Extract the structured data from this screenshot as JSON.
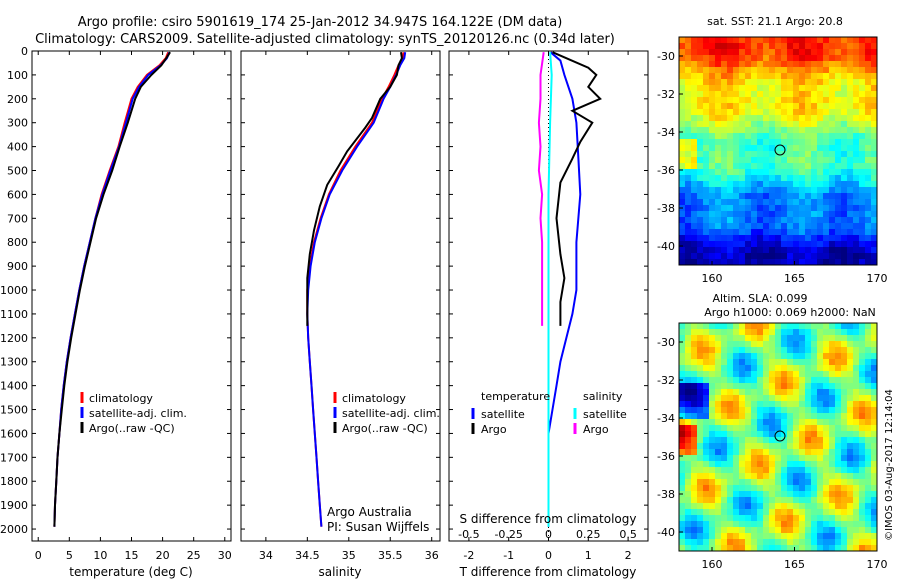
{
  "header": {
    "title_line1": "Argo profile: csiro 5901619_174 25-Jan-2012 34.947S 164.122E (DM data)",
    "title_line2": "Climatology: CARS2009. Satellite-adjusted climatology: synTS_20120126.nc (0.34d later)"
  },
  "chart_data": [
    {
      "type": "line",
      "panel": "temperature",
      "xlabel": "temperature (deg C)",
      "ylabel": "",
      "xlim": [
        -1,
        31
      ],
      "ylim": [
        2050,
        0
      ],
      "xticks": [
        0,
        5,
        10,
        15,
        20,
        25,
        30
      ],
      "yticks": [
        0,
        100,
        200,
        300,
        400,
        500,
        600,
        700,
        800,
        900,
        1000,
        1100,
        1200,
        1300,
        1400,
        1500,
        1600,
        1700,
        1800,
        1900,
        2000
      ],
      "legend": [
        "climatology",
        "satellite-adj. clim.",
        "Argo(..raw -QC)"
      ],
      "series": [
        {
          "name": "climatology",
          "color": "#ff0000",
          "points": [
            [
              20.9,
              5
            ],
            [
              20.5,
              30
            ],
            [
              19.5,
              60
            ],
            [
              17.5,
              100
            ],
            [
              16.0,
              150
            ],
            [
              15.0,
              200
            ],
            [
              13.9,
              300
            ],
            [
              12.9,
              400
            ],
            [
              11.5,
              500
            ],
            [
              10.2,
              600
            ],
            [
              9.2,
              700
            ],
            [
              8.3,
              800
            ],
            [
              7.4,
              900
            ],
            [
              6.6,
              1000
            ],
            [
              5.9,
              1100
            ],
            [
              5.2,
              1200
            ],
            [
              4.6,
              1300
            ],
            [
              4.1,
              1400
            ],
            [
              3.7,
              1500
            ],
            [
              3.4,
              1600
            ],
            [
              3.1,
              1700
            ],
            [
              2.9,
              1800
            ],
            [
              2.7,
              1900
            ],
            [
              2.6,
              1990
            ]
          ]
        },
        {
          "name": "satellite-adj. clim.",
          "color": "#0000ff",
          "points": [
            [
              21.1,
              5
            ],
            [
              20.7,
              30
            ],
            [
              19.7,
              60
            ],
            [
              17.7,
              100
            ],
            [
              16.2,
              150
            ],
            [
              15.2,
              200
            ],
            [
              14.1,
              300
            ],
            [
              13.0,
              400
            ],
            [
              11.6,
              500
            ],
            [
              10.3,
              600
            ],
            [
              9.2,
              700
            ],
            [
              8.3,
              800
            ],
            [
              7.4,
              900
            ],
            [
              6.6,
              1000
            ],
            [
              5.9,
              1100
            ],
            [
              5.2,
              1200
            ],
            [
              4.6,
              1300
            ],
            [
              4.1,
              1400
            ],
            [
              3.7,
              1500
            ],
            [
              3.4,
              1600
            ],
            [
              3.1,
              1700
            ],
            [
              2.9,
              1800
            ],
            [
              2.7,
              1900
            ],
            [
              2.6,
              1990
            ]
          ]
        },
        {
          "name": "Argo(..raw -QC)",
          "color": "#000000",
          "points": [
            [
              21.2,
              5
            ],
            [
              20.6,
              30
            ],
            [
              19.8,
              60
            ],
            [
              18.2,
              100
            ],
            [
              16.5,
              150
            ],
            [
              15.6,
              200
            ],
            [
              14.4,
              300
            ],
            [
              13.1,
              400
            ],
            [
              11.9,
              500
            ],
            [
              10.5,
              600
            ],
            [
              9.3,
              700
            ],
            [
              8.4,
              800
            ],
            [
              7.5,
              900
            ],
            [
              6.7,
              1000
            ],
            [
              6.0,
              1100
            ],
            [
              5.3,
              1200
            ],
            [
              4.7,
              1300
            ],
            [
              4.2,
              1400
            ],
            [
              3.8,
              1500
            ],
            [
              3.4,
              1600
            ],
            [
              3.1,
              1700
            ],
            [
              2.9,
              1800
            ],
            [
              2.7,
              1900
            ],
            [
              2.6,
              1990
            ]
          ]
        }
      ]
    },
    {
      "type": "line",
      "panel": "salinity",
      "xlabel": "salinity",
      "ylabel": "",
      "xlim": [
        33.7,
        36.1
      ],
      "ylim": [
        2050,
        0
      ],
      "xticks": [
        34,
        34.5,
        35,
        35.5,
        36
      ],
      "legend": [
        "climatology",
        "satellite-adj. clim.",
        "Argo(..raw -QC)"
      ],
      "annotation": [
        "Argo Australia",
        "PI: Susan Wijffels"
      ],
      "series": [
        {
          "name": "climatology",
          "color": "#ff0000",
          "points": [
            [
              35.66,
              5
            ],
            [
              35.65,
              30
            ],
            [
              35.6,
              60
            ],
            [
              35.55,
              100
            ],
            [
              35.48,
              150
            ],
            [
              35.4,
              200
            ],
            [
              35.28,
              300
            ],
            [
              35.08,
              400
            ],
            [
              34.9,
              500
            ],
            [
              34.76,
              600
            ],
            [
              34.66,
              700
            ],
            [
              34.58,
              800
            ],
            [
              34.53,
              900
            ],
            [
              34.5,
              1000
            ],
            [
              34.5,
              1100
            ],
            [
              34.51,
              1200
            ],
            [
              34.53,
              1300
            ],
            [
              34.55,
              1400
            ],
            [
              34.57,
              1500
            ],
            [
              34.59,
              1600
            ],
            [
              34.61,
              1700
            ],
            [
              34.63,
              1800
            ],
            [
              34.65,
              1900
            ],
            [
              34.67,
              1990
            ]
          ]
        },
        {
          "name": "satellite-adj. clim.",
          "color": "#0000ff",
          "points": [
            [
              35.68,
              5
            ],
            [
              35.67,
              30
            ],
            [
              35.62,
              60
            ],
            [
              35.57,
              100
            ],
            [
              35.5,
              150
            ],
            [
              35.42,
              200
            ],
            [
              35.3,
              300
            ],
            [
              35.1,
              400
            ],
            [
              34.92,
              500
            ],
            [
              34.77,
              600
            ],
            [
              34.67,
              700
            ],
            [
              34.59,
              800
            ],
            [
              34.54,
              900
            ],
            [
              34.51,
              1000
            ],
            [
              34.5,
              1100
            ],
            [
              34.51,
              1200
            ],
            [
              34.53,
              1300
            ],
            [
              34.55,
              1400
            ],
            [
              34.57,
              1500
            ],
            [
              34.59,
              1600
            ],
            [
              34.61,
              1700
            ],
            [
              34.63,
              1800
            ],
            [
              34.65,
              1900
            ],
            [
              34.67,
              1990
            ]
          ]
        },
        {
          "name": "Argo(..raw -QC)",
          "color": "#000000",
          "points": [
            [
              35.63,
              5
            ],
            [
              35.64,
              30
            ],
            [
              35.6,
              60
            ],
            [
              35.58,
              100
            ],
            [
              35.5,
              150
            ],
            [
              35.38,
              200
            ],
            [
              35.28,
              280
            ],
            [
              35.2,
              320
            ],
            [
              34.98,
              420
            ],
            [
              34.88,
              480
            ],
            [
              34.74,
              560
            ],
            [
              34.65,
              650
            ],
            [
              34.58,
              750
            ],
            [
              34.53,
              850
            ],
            [
              34.5,
              950
            ],
            [
              34.5,
              1050
            ],
            [
              34.5,
              1150
            ]
          ]
        }
      ]
    },
    {
      "type": "line",
      "panel": "difference",
      "xlabel": "T difference from climatology",
      "xlabel_top": "S difference from climatology",
      "xlim": [
        -2.5,
        2.5
      ],
      "ylim": [
        2050,
        0
      ],
      "xticks": [
        -2,
        -1,
        0,
        1,
        2
      ],
      "xticks_top": [
        "-0.5",
        "-0.25",
        "0",
        "0.25",
        "0.5"
      ],
      "legend_headers": [
        "temperature",
        "salinity"
      ],
      "legend": [
        "satellite",
        "Argo",
        "satellite",
        "Argo"
      ],
      "series": [
        {
          "name": "temperature satellite",
          "color": "#0000ff",
          "points": [
            [
              0.05,
              5
            ],
            [
              0.3,
              40
            ],
            [
              0.4,
              100
            ],
            [
              0.6,
              200
            ],
            [
              0.7,
              300
            ],
            [
              0.75,
              450
            ],
            [
              0.8,
              600
            ],
            [
              0.7,
              800
            ],
            [
              0.7,
              1000
            ],
            [
              0.6,
              1100
            ],
            [
              0.45,
              1200
            ],
            [
              0.3,
              1300
            ],
            [
              0.2,
              1400
            ],
            [
              0.1,
              1500
            ],
            [
              0.0,
              1600
            ],
            [
              0.0,
              1800
            ],
            [
              0.0,
              1990
            ]
          ]
        },
        {
          "name": "temperature Argo",
          "color": "#000000",
          "points": [
            [
              0.1,
              5
            ],
            [
              1.0,
              70
            ],
            [
              1.2,
              100
            ],
            [
              1.0,
              150
            ],
            [
              1.3,
              200
            ],
            [
              0.6,
              250
            ],
            [
              1.1,
              300
            ],
            [
              0.8,
              380
            ],
            [
              0.6,
              450
            ],
            [
              0.3,
              550
            ],
            [
              0.2,
              700
            ],
            [
              0.3,
              850
            ],
            [
              0.4,
              950
            ],
            [
              0.3,
              1050
            ],
            [
              0.3,
              1150
            ]
          ]
        },
        {
          "name": "salinity satellite",
          "color": "#00ffff",
          "points": [
            [
              0.01,
              5
            ],
            [
              0.02,
              100
            ],
            [
              0.01,
              300
            ],
            [
              0.0,
              600
            ],
            [
              0.0,
              1000
            ],
            [
              0.0,
              1500
            ],
            [
              0.0,
              1990
            ]
          ]
        },
        {
          "name": "salinity Argo",
          "color": "#ff00ff",
          "points": [
            [
              -0.03,
              5
            ],
            [
              -0.05,
              100
            ],
            [
              -0.05,
              200
            ],
            [
              -0.06,
              300
            ],
            [
              -0.05,
              400
            ],
            [
              -0.06,
              500
            ],
            [
              -0.04,
              600
            ],
            [
              -0.05,
              700
            ],
            [
              -0.04,
              800
            ],
            [
              -0.04,
              900
            ],
            [
              -0.04,
              1000
            ],
            [
              -0.04,
              1100
            ],
            [
              -0.04,
              1150
            ]
          ]
        }
      ]
    },
    {
      "type": "heatmap",
      "panel": "sst-map",
      "title": "sat. SST: 21.1 Argo: 20.8",
      "xlim": [
        158,
        170
      ],
      "ylim": [
        -41,
        -29
      ],
      "xticks": [
        160,
        165,
        170
      ],
      "yticks": [
        -30,
        -32,
        -34,
        -36,
        -38,
        -40
      ],
      "marker": [
        164.122,
        -34.947
      ]
    },
    {
      "type": "heatmap",
      "panel": "sla-map",
      "title_line1": "Altim. SLA: 0.099",
      "title_line2": "Argo h1000: 0.069 h2000: NaN",
      "xlim": [
        158,
        170
      ],
      "ylim": [
        -41,
        -29
      ],
      "xticks": [
        160,
        165,
        170
      ],
      "yticks": [
        -30,
        -32,
        -34,
        -36,
        -38,
        -40
      ],
      "marker": [
        164.122,
        -34.947
      ]
    }
  ],
  "footer": {
    "stamp": "©IMOS 03-Aug-2017 12:14:04"
  }
}
